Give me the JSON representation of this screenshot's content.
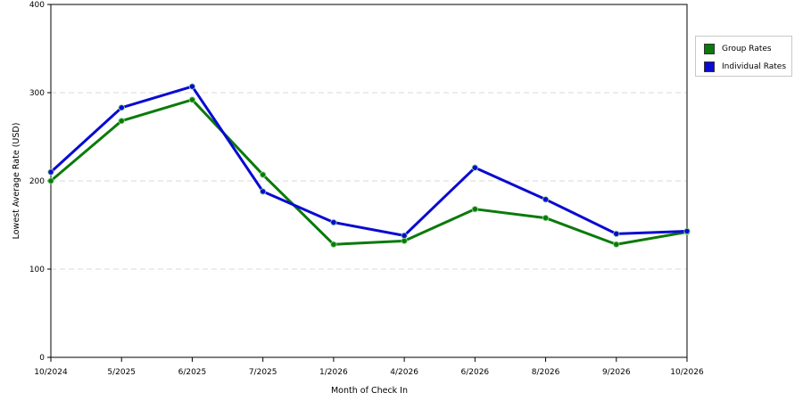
{
  "chart_data": {
    "type": "line",
    "categories": [
      "10/2024",
      "5/2025",
      "6/2025",
      "7/2025",
      "1/2026",
      "4/2026",
      "6/2026",
      "8/2026",
      "9/2026",
      "10/2026"
    ],
    "series": [
      {
        "name": "Group Rates",
        "color": "#0a7a0a",
        "values": [
          200,
          268,
          292,
          207,
          128,
          132,
          168,
          158,
          128,
          142
        ]
      },
      {
        "name": "Individual Rates",
        "color": "#0a0ad2",
        "values": [
          210,
          283,
          307,
          188,
          153,
          138,
          215,
          179,
          140,
          143
        ]
      }
    ],
    "title": "",
    "xlabel": "Month of Check In",
    "ylabel": "Lowest Average Rate (USD)",
    "ylim": [
      0,
      400
    ],
    "yticks": [
      "0",
      "100",
      "200",
      "300",
      "400"
    ],
    "grid": "horizontal dashed",
    "legend_position": "right"
  }
}
